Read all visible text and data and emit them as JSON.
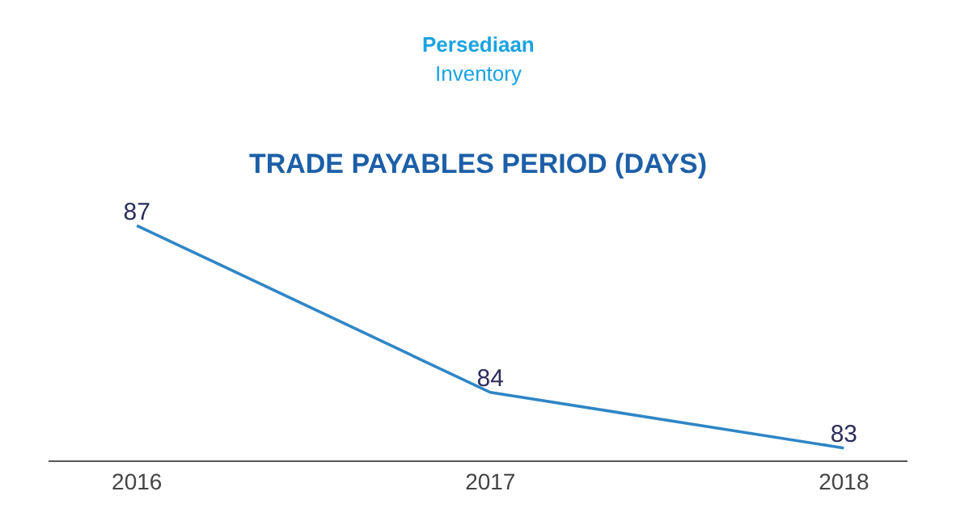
{
  "chart_data": {
    "type": "line",
    "title": "TRADE PAYABLES PERIOD (DAYS)",
    "annotations": [
      "Persediaan",
      "Inventory"
    ],
    "categories": [
      "2016",
      "2017",
      "2018"
    ],
    "series": [
      {
        "color": "#2f86c6",
        "values": [
          87,
          84,
          83
        ]
      }
    ],
    "data_labels": true,
    "tick_labels": "x",
    "marker": "none",
    "line_style": "solid"
  }
}
